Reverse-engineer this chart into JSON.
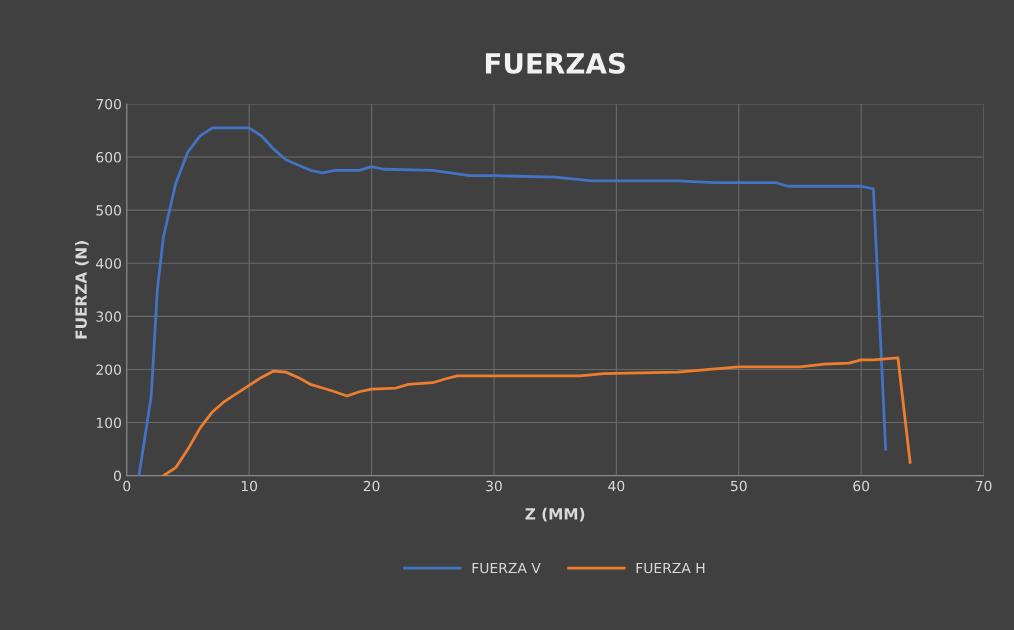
{
  "chart_data": {
    "type": "line",
    "title": "FUERZAS",
    "xlabel": "Z (MM)",
    "ylabel": "FUERZA (N)",
    "xlim": [
      0,
      70
    ],
    "xticks": [
      0,
      10,
      20,
      30,
      40,
      50,
      60,
      70
    ],
    "ylim": [
      0,
      700
    ],
    "yticks": [
      0,
      100,
      200,
      300,
      400,
      500,
      600,
      700
    ],
    "grid": true,
    "legend": "bottom",
    "marker": "none",
    "line_style": "solid",
    "series": [
      {
        "name": "FUERZA V",
        "color": "#4472c4",
        "x": [
          1,
          2,
          2.5,
          3,
          4,
          5,
          6,
          7,
          8,
          9,
          10,
          11,
          12,
          13,
          14,
          15,
          16,
          17,
          18,
          19,
          20,
          21,
          25,
          28,
          30,
          35,
          38,
          45,
          48,
          53,
          54,
          60,
          61,
          62
        ],
        "values": [
          0,
          150,
          350,
          450,
          550,
          610,
          640,
          655,
          655,
          655,
          655,
          640,
          615,
          595,
          585,
          575,
          570,
          575,
          575,
          575,
          582,
          577,
          575,
          565,
          565,
          562,
          555,
          555,
          552,
          552,
          545,
          545,
          540,
          50
        ]
      },
      {
        "name": "FUERZA H",
        "color": "#ed7d31",
        "x": [
          3,
          4,
          5,
          6,
          7,
          8,
          9,
          10,
          11,
          12,
          13,
          14,
          15,
          16,
          17,
          18,
          19,
          20,
          22,
          23,
          25,
          26,
          27,
          30,
          37,
          39,
          41,
          45,
          50,
          55,
          57,
          59,
          60,
          61,
          62,
          63,
          64
        ],
        "values": [
          0,
          15,
          50,
          90,
          120,
          140,
          155,
          170,
          185,
          197,
          195,
          185,
          172,
          165,
          158,
          150,
          158,
          163,
          165,
          172,
          175,
          182,
          188,
          188,
          188,
          192,
          193,
          195,
          205,
          205,
          210,
          212,
          218,
          218,
          220,
          222,
          25
        ]
      }
    ]
  }
}
